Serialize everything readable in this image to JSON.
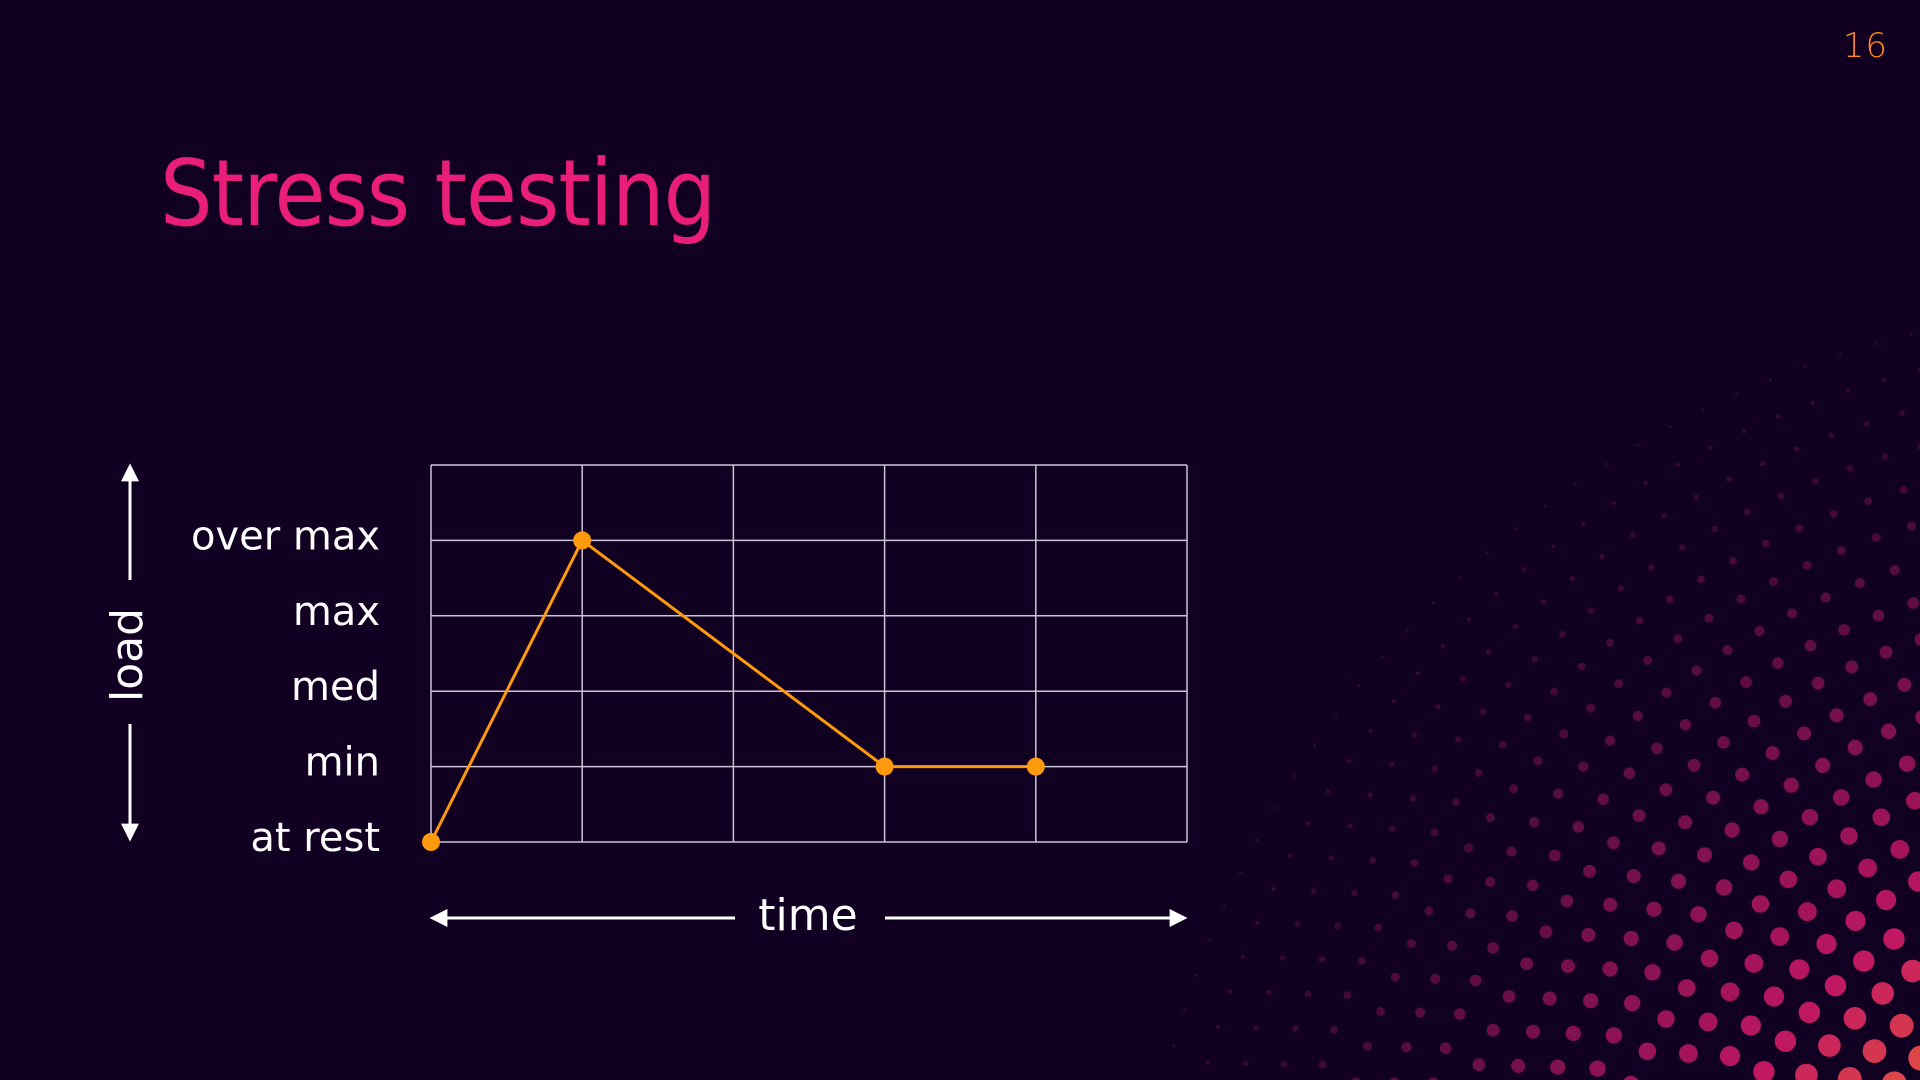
{
  "slide": {
    "page_number": "16",
    "title": "Stress testing"
  },
  "colors": {
    "background": "#120022",
    "title": "#e81e78",
    "page_number": "#ff8c1a",
    "series": "#ff9a0e",
    "grid": "#c9c4d6",
    "text": "#ffffff",
    "halftone_inner": "#a61e6e",
    "halftone_mid": "#ff1f7a",
    "halftone_outer": "#ff8a1e"
  },
  "chart_data": {
    "type": "line",
    "title": "",
    "xlabel": "time",
    "ylabel": "load",
    "x": [
      0,
      1,
      3,
      4
    ],
    "xlim": [
      0,
      5
    ],
    "y_categories": [
      "at rest",
      "min",
      "med",
      "max",
      "over max"
    ],
    "ylim": [
      0,
      5
    ],
    "grid": true,
    "legend": "none",
    "series": [
      {
        "values": [
          0,
          4,
          1,
          1
        ]
      }
    ]
  }
}
